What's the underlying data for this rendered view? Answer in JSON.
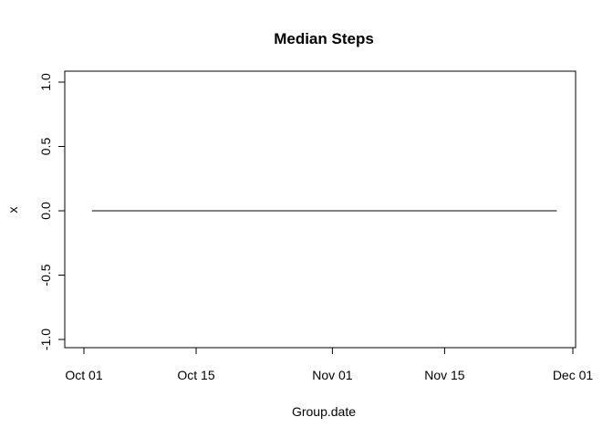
{
  "chart_data": {
    "type": "line",
    "title": "Median Steps",
    "xlabel": "Group.date",
    "ylabel": "x",
    "xlim": [
      "2012-10-01",
      "2012-12-01"
    ],
    "ylim": [
      -1.08,
      1.08
    ],
    "x_ticks": [
      {
        "date": "2012-10-01",
        "label": "Oct 01"
      },
      {
        "date": "2012-10-15",
        "label": "Oct 15"
      },
      {
        "date": "2012-11-01",
        "label": "Nov 01"
      },
      {
        "date": "2012-11-15",
        "label": "Nov 15"
      },
      {
        "date": "2012-12-01",
        "label": "Dec 01"
      }
    ],
    "y_ticks": [
      {
        "value": -1.0,
        "label": "-1.0"
      },
      {
        "value": -0.5,
        "label": "-0.5"
      },
      {
        "value": 0.0,
        "label": "0.0"
      },
      {
        "value": 0.5,
        "label": "0.5"
      },
      {
        "value": 1.0,
        "label": "1.0"
      }
    ],
    "series": [
      {
        "color": "#000000",
        "points": [
          {
            "x": "2012-10-02",
            "y": 0
          },
          {
            "x": "2012-11-29",
            "y": 0
          }
        ]
      }
    ],
    "grid": false,
    "legend": "none"
  }
}
